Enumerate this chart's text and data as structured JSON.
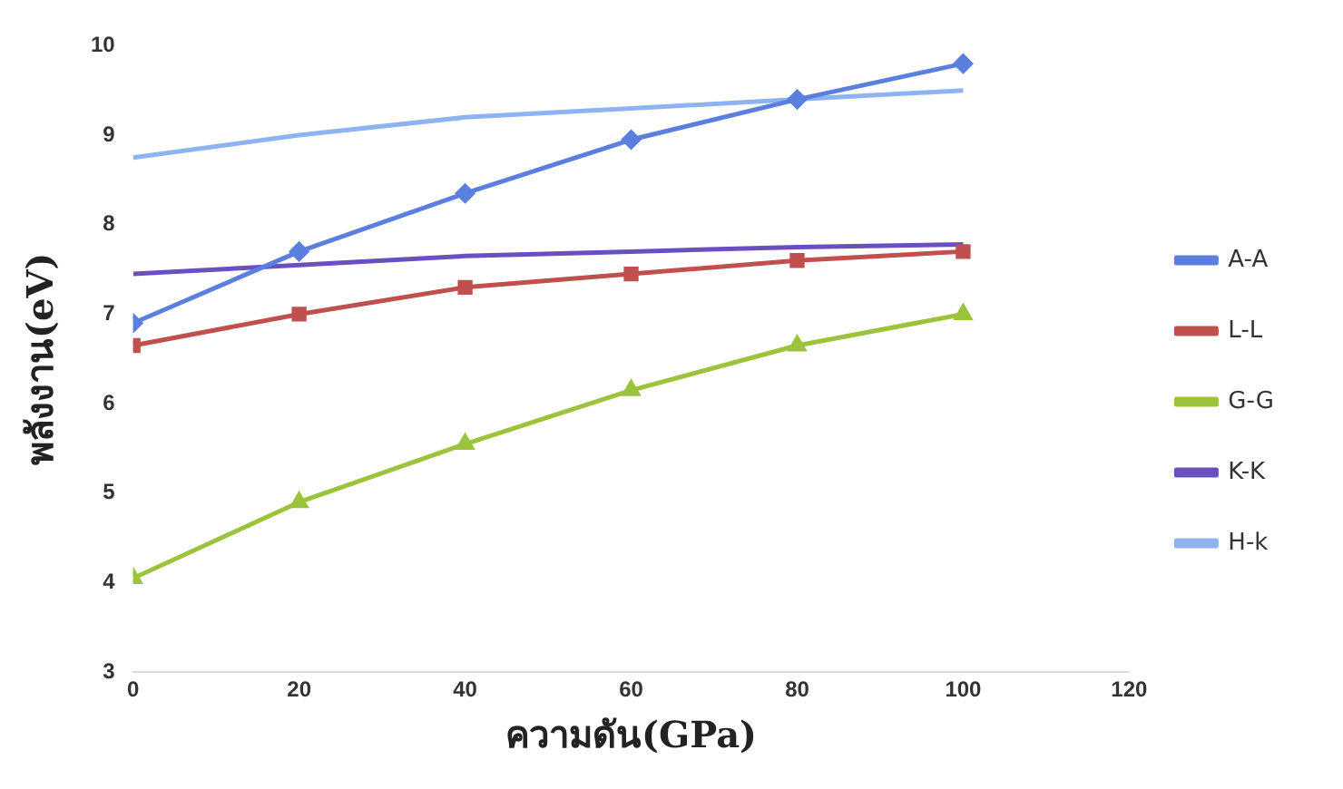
{
  "chart_data": {
    "type": "line",
    "xlabel": "ความดัน(GPa)",
    "ylabel": "พลังงาน(eV)",
    "x": [
      0,
      20,
      40,
      60,
      80,
      100
    ],
    "xlim": [
      0,
      120
    ],
    "xticks": [
      0,
      20,
      40,
      60,
      80,
      100,
      120
    ],
    "ylim": [
      3,
      10
    ],
    "yticks": [
      3,
      4,
      5,
      6,
      7,
      8,
      9,
      10
    ],
    "legend": "right",
    "grid": false,
    "series": [
      {
        "name": "A-A",
        "color": "#5b7fde",
        "marker": "diamond",
        "values": [
          6.9,
          7.7,
          8.35,
          8.95,
          9.4,
          9.8
        ]
      },
      {
        "name": "L-L",
        "color": "#c0504d",
        "marker": "square",
        "values": [
          6.65,
          7.0,
          7.3,
          7.45,
          7.6,
          7.7
        ]
      },
      {
        "name": "G-G",
        "color": "#9bc33c",
        "marker": "triangle",
        "values": [
          4.05,
          4.9,
          5.55,
          6.15,
          6.65,
          7.0
        ]
      },
      {
        "name": "K-K",
        "color": "#6a4fc0",
        "marker": "none",
        "values": [
          7.45,
          7.55,
          7.65,
          7.7,
          7.75,
          7.78
        ]
      },
      {
        "name": "H-k",
        "color": "#8db4f0",
        "marker": "none",
        "values": [
          8.75,
          9.0,
          9.2,
          9.3,
          9.4,
          9.5
        ]
      }
    ]
  }
}
